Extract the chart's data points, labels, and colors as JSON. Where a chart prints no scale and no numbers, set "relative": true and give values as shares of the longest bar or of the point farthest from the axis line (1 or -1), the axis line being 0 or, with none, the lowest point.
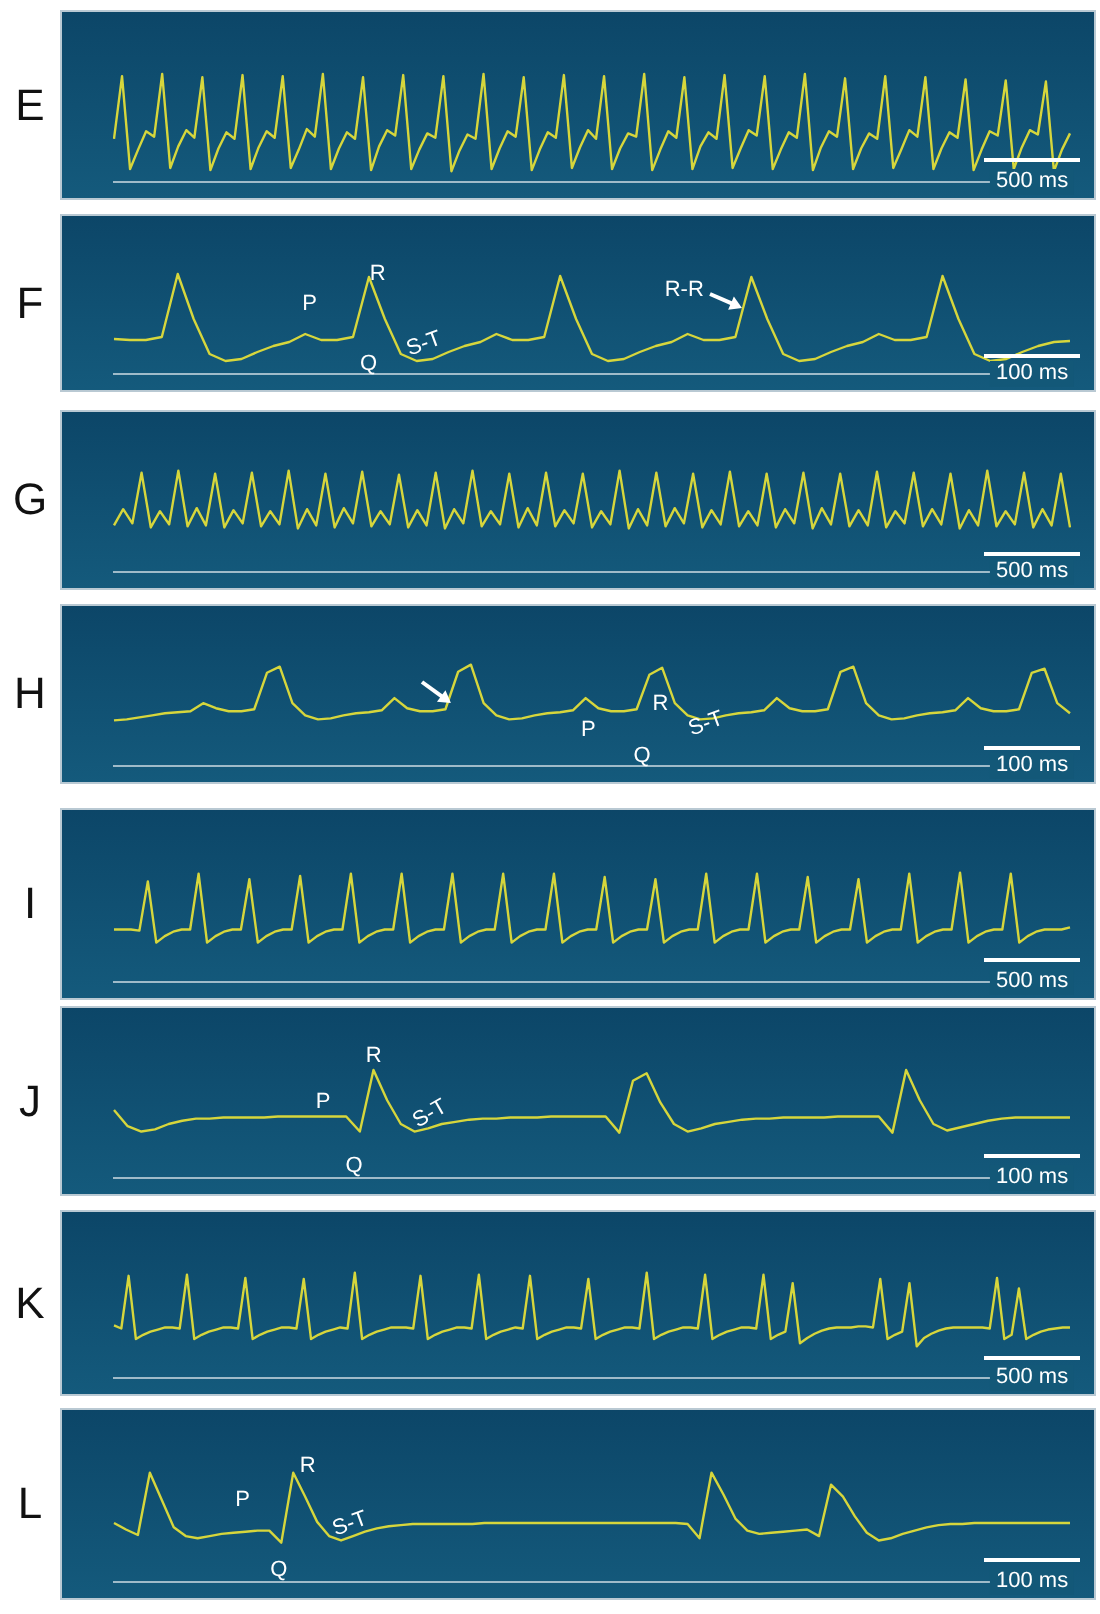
{
  "chart_data": [
    {
      "type": "line",
      "title": "E",
      "relative": true,
      "grid": false,
      "legend": false,
      "tick_labels": false,
      "marker": "none",
      "color": "#d6d63c",
      "annotations": [
        "500 ms"
      ],
      "categories": [
        null,
        null,
        null,
        null,
        null,
        null,
        null,
        null,
        null,
        null,
        null,
        null,
        null,
        null,
        null,
        null,
        null,
        null,
        null,
        null,
        null,
        null,
        null,
        null,
        null,
        null,
        null,
        null,
        null,
        null,
        null,
        null,
        null,
        null,
        null,
        null,
        null,
        null,
        null,
        null,
        null,
        null,
        null,
        null,
        null,
        null,
        null,
        null,
        null,
        null,
        null,
        null,
        null,
        null,
        null,
        null,
        null,
        null,
        null,
        null,
        null,
        null,
        null,
        null,
        null,
        null,
        null,
        null,
        null,
        null,
        null,
        null,
        null,
        null,
        null,
        null,
        null,
        null,
        null,
        null,
        null,
        null,
        null,
        null,
        null,
        null,
        null,
        null,
        null,
        null,
        null,
        null,
        null,
        null,
        null,
        null,
        null,
        null,
        null,
        null,
        null,
        null,
        null,
        null,
        null,
        null,
        null,
        null,
        null,
        null,
        null,
        null,
        null,
        null,
        null,
        null,
        null,
        null,
        null,
        null
      ],
      "values": [
        0.4,
        0.98,
        0.12,
        0.3,
        0.47,
        0.42,
        1.0,
        0.13,
        0.33,
        0.48,
        0.41,
        0.97,
        0.11,
        0.31,
        0.46,
        0.4,
        0.99,
        0.12,
        0.32,
        0.47,
        0.41,
        0.98,
        0.13,
        0.3,
        0.49,
        0.42,
        1.0,
        0.12,
        0.31,
        0.46,
        0.4,
        0.97,
        0.11,
        0.33,
        0.48,
        0.43,
        0.99,
        0.12,
        0.3,
        0.45,
        0.41,
        0.98,
        0.1,
        0.29,
        0.44,
        0.4,
        1.0,
        0.12,
        0.31,
        0.47,
        0.42,
        0.97,
        0.11,
        0.3,
        0.46,
        0.41,
        0.99,
        0.13,
        0.32,
        0.48,
        0.4,
        0.98,
        0.12,
        0.31,
        0.45,
        0.42,
        1.0,
        0.11,
        0.3,
        0.47,
        0.41,
        0.97,
        0.12,
        0.33,
        0.46,
        0.4,
        0.99,
        0.13,
        0.31,
        0.48,
        0.43,
        0.98,
        0.12,
        0.3,
        0.46,
        0.41,
        1.0,
        0.11,
        0.32,
        0.47,
        0.42,
        0.96,
        0.12,
        0.31,
        0.45,
        0.4,
        0.98,
        0.13,
        0.3,
        0.48,
        0.42,
        0.97,
        0.12,
        0.31,
        0.46,
        0.41,
        0.95,
        0.11,
        0.3,
        0.47,
        0.43,
        0.94,
        0.12,
        0.32,
        0.48,
        0.44,
        0.93,
        0.1,
        0.3,
        0.45
      ]
    },
    {
      "type": "line",
      "title": "F",
      "relative": true,
      "grid": false,
      "legend": false,
      "tick_labels": false,
      "marker": "none",
      "color": "#d6d63c",
      "annotations": [
        "P",
        "R",
        "Q",
        "S-T",
        "R-R",
        "100 ms"
      ],
      "categories": [
        null,
        null,
        null,
        null,
        null,
        null,
        null,
        null,
        null,
        null,
        null,
        null,
        null,
        null,
        null,
        null,
        null,
        null,
        null,
        null,
        null,
        null,
        null,
        null,
        null,
        null,
        null,
        null,
        null,
        null,
        null,
        null,
        null,
        null,
        null,
        null,
        null,
        null,
        null,
        null,
        null,
        null,
        null,
        null,
        null,
        null,
        null,
        null,
        null,
        null,
        null,
        null,
        null,
        null,
        null,
        null,
        null,
        null,
        null,
        null,
        null
      ],
      "values": [
        0.35,
        0.34,
        0.34,
        0.37,
        1.0,
        0.55,
        0.2,
        0.13,
        0.15,
        0.22,
        0.28,
        0.32,
        0.4,
        0.34,
        0.34,
        0.37,
        0.97,
        0.55,
        0.2,
        0.13,
        0.15,
        0.22,
        0.28,
        0.32,
        0.4,
        0.34,
        0.34,
        0.37,
        0.98,
        0.55,
        0.2,
        0.13,
        0.15,
        0.22,
        0.28,
        0.32,
        0.4,
        0.34,
        0.34,
        0.37,
        0.97,
        0.55,
        0.2,
        0.13,
        0.15,
        0.22,
        0.28,
        0.32,
        0.4,
        0.34,
        0.34,
        0.37,
        0.98,
        0.55,
        0.2,
        0.13,
        0.15,
        0.22,
        0.28,
        0.32,
        0.33
      ]
    },
    {
      "type": "line",
      "title": "G",
      "relative": true,
      "grid": false,
      "legend": false,
      "tick_labels": false,
      "marker": "none",
      "color": "#d6d63c",
      "annotations": [
        "500 ms"
      ],
      "categories": [
        null,
        null,
        null,
        null,
        null,
        null,
        null,
        null,
        null,
        null,
        null,
        null,
        null,
        null,
        null,
        null,
        null,
        null,
        null,
        null,
        null,
        null,
        null,
        null,
        null,
        null,
        null,
        null,
        null,
        null,
        null,
        null,
        null,
        null,
        null,
        null,
        null,
        null,
        null,
        null,
        null,
        null,
        null,
        null,
        null,
        null,
        null,
        null,
        null,
        null,
        null,
        null,
        null,
        null,
        null,
        null,
        null,
        null,
        null,
        null,
        null,
        null,
        null,
        null,
        null,
        null,
        null,
        null,
        null,
        null,
        null,
        null,
        null,
        null,
        null,
        null,
        null,
        null,
        null,
        null,
        null,
        null,
        null,
        null,
        null,
        null,
        null,
        null,
        null,
        null,
        null,
        null,
        null,
        null,
        null,
        null,
        null,
        null,
        null,
        null,
        null,
        null,
        null,
        null,
        null
      ],
      "values": [
        0.46,
        0.62,
        0.48,
        0.98,
        0.44,
        0.6,
        0.47,
        1.0,
        0.45,
        0.63,
        0.46,
        0.97,
        0.44,
        0.61,
        0.48,
        0.98,
        0.45,
        0.6,
        0.47,
        1.0,
        0.43,
        0.62,
        0.46,
        0.97,
        0.44,
        0.63,
        0.48,
        0.99,
        0.45,
        0.6,
        0.47,
        0.96,
        0.44,
        0.61,
        0.46,
        0.98,
        0.43,
        0.62,
        0.48,
        1.0,
        0.45,
        0.6,
        0.47,
        0.97,
        0.44,
        0.63,
        0.46,
        0.98,
        0.45,
        0.61,
        0.48,
        0.97,
        0.44,
        0.6,
        0.47,
        1.0,
        0.43,
        0.62,
        0.46,
        0.98,
        0.45,
        0.63,
        0.48,
        0.97,
        0.44,
        0.61,
        0.47,
        0.99,
        0.45,
        0.6,
        0.46,
        0.97,
        0.44,
        0.62,
        0.48,
        0.98,
        0.43,
        0.63,
        0.47,
        0.97,
        0.45,
        0.61,
        0.46,
        0.99,
        0.44,
        0.6,
        0.48,
        0.98,
        0.45,
        0.62,
        0.47,
        0.97,
        0.43,
        0.61,
        0.46,
        1.0,
        0.45,
        0.6,
        0.47,
        0.98,
        0.44,
        0.62,
        0.46,
        0.97,
        0.44
      ]
    },
    {
      "type": "line",
      "title": "H",
      "relative": true,
      "grid": false,
      "legend": false,
      "tick_labels": false,
      "marker": "none",
      "color": "#d6d63c",
      "annotations": [
        "P",
        "R",
        "Q",
        "S-T",
        "100 ms"
      ],
      "categories": [
        null,
        null,
        null,
        null,
        null,
        null,
        null,
        null,
        null,
        null,
        null,
        null,
        null,
        null,
        null,
        null,
        null,
        null,
        null,
        null,
        null,
        null,
        null,
        null,
        null,
        null,
        null,
        null,
        null,
        null,
        null,
        null,
        null,
        null,
        null,
        null,
        null,
        null,
        null,
        null,
        null,
        null,
        null,
        null,
        null,
        null,
        null,
        null,
        null,
        null,
        null,
        null,
        null,
        null,
        null,
        null,
        null,
        null,
        null,
        null,
        null,
        null,
        null,
        null,
        null,
        null,
        null,
        null,
        null,
        null,
        null,
        null,
        null,
        null,
        null,
        null
      ],
      "values": [
        0.45,
        0.46,
        0.48,
        0.5,
        0.52,
        0.53,
        0.54,
        0.62,
        0.57,
        0.54,
        0.54,
        0.56,
        0.92,
        0.98,
        0.62,
        0.5,
        0.46,
        0.47,
        0.5,
        0.52,
        0.53,
        0.55,
        0.67,
        0.57,
        0.54,
        0.54,
        0.56,
        0.93,
        1.0,
        0.62,
        0.5,
        0.46,
        0.47,
        0.5,
        0.52,
        0.53,
        0.55,
        0.67,
        0.57,
        0.54,
        0.54,
        0.56,
        0.9,
        0.97,
        0.62,
        0.5,
        0.46,
        0.47,
        0.5,
        0.52,
        0.53,
        0.55,
        0.67,
        0.57,
        0.54,
        0.54,
        0.56,
        0.93,
        0.98,
        0.62,
        0.5,
        0.46,
        0.47,
        0.5,
        0.52,
        0.53,
        0.55,
        0.67,
        0.57,
        0.54,
        0.54,
        0.56,
        0.92,
        0.96,
        0.62,
        0.52
      ]
    },
    {
      "type": "line",
      "title": "I",
      "relative": true,
      "grid": false,
      "legend": false,
      "tick_labels": false,
      "marker": "none",
      "color": "#d6d63c",
      "annotations": [
        "500 ms"
      ],
      "categories": [
        null,
        null,
        null,
        null,
        null,
        null,
        null,
        null,
        null,
        null,
        null,
        null,
        null,
        null,
        null,
        null,
        null,
        null,
        null,
        null,
        null,
        null,
        null,
        null,
        null,
        null,
        null,
        null,
        null,
        null,
        null,
        null,
        null,
        null,
        null,
        null,
        null,
        null,
        null,
        null,
        null,
        null,
        null,
        null,
        null,
        null,
        null,
        null,
        null,
        null,
        null,
        null,
        null,
        null,
        null,
        null,
        null,
        null,
        null,
        null,
        null,
        null,
        null,
        null,
        null,
        null,
        null,
        null,
        null,
        null,
        null,
        null,
        null,
        null,
        null,
        null,
        null,
        null,
        null,
        null,
        null,
        null,
        null,
        null,
        null,
        null,
        null,
        null,
        null,
        null,
        null,
        null,
        null,
        null,
        null,
        null,
        null,
        null,
        null,
        null,
        null,
        null,
        null,
        null,
        null,
        null,
        null,
        null,
        null,
        null,
        null,
        null,
        null,
        null
      ],
      "values": [
        0.48,
        0.48,
        0.48,
        0.47,
        0.92,
        0.36,
        0.42,
        0.46,
        0.48,
        0.48,
        0.99,
        0.36,
        0.42,
        0.46,
        0.48,
        0.48,
        0.94,
        0.36,
        0.42,
        0.46,
        0.48,
        0.48,
        0.97,
        0.36,
        0.42,
        0.46,
        0.48,
        0.48,
        0.99,
        0.36,
        0.42,
        0.46,
        0.48,
        0.48,
        0.99,
        0.36,
        0.42,
        0.46,
        0.48,
        0.48,
        0.99,
        0.36,
        0.42,
        0.46,
        0.48,
        0.48,
        0.99,
        0.36,
        0.42,
        0.46,
        0.48,
        0.48,
        0.99,
        0.36,
        0.42,
        0.46,
        0.48,
        0.48,
        0.96,
        0.36,
        0.42,
        0.46,
        0.48,
        0.48,
        0.94,
        0.36,
        0.42,
        0.46,
        0.48,
        0.48,
        0.99,
        0.36,
        0.42,
        0.46,
        0.48,
        0.48,
        0.99,
        0.36,
        0.42,
        0.46,
        0.48,
        0.48,
        0.96,
        0.36,
        0.42,
        0.46,
        0.48,
        0.48,
        0.94,
        0.36,
        0.42,
        0.46,
        0.48,
        0.48,
        0.99,
        0.36,
        0.42,
        0.46,
        0.48,
        0.48,
        1.0,
        0.36,
        0.42,
        0.46,
        0.48,
        0.48,
        0.99,
        0.36,
        0.42,
        0.46,
        0.48,
        0.48,
        0.48,
        0.5
      ]
    },
    {
      "type": "line",
      "title": "J",
      "relative": true,
      "grid": false,
      "legend": false,
      "tick_labels": false,
      "marker": "none",
      "color": "#d6d63c",
      "annotations": [
        "P",
        "R",
        "Q",
        "S-T",
        "100 ms"
      ],
      "categories": [
        null,
        null,
        null,
        null,
        null,
        null,
        null,
        null,
        null,
        null,
        null,
        null,
        null,
        null,
        null,
        null,
        null,
        null,
        null,
        null,
        null,
        null,
        null,
        null,
        null,
        null,
        null,
        null,
        null,
        null,
        null,
        null,
        null,
        null,
        null,
        null,
        null,
        null,
        null,
        null,
        null,
        null,
        null,
        null,
        null,
        null,
        null,
        null,
        null,
        null,
        null,
        null,
        null,
        null,
        null,
        null,
        null,
        null,
        null,
        null,
        null,
        null,
        null,
        null,
        null,
        null,
        null,
        null,
        null,
        null,
        null
      ],
      "values": [
        0.63,
        0.48,
        0.43,
        0.45,
        0.5,
        0.53,
        0.55,
        0.55,
        0.56,
        0.56,
        0.56,
        0.56,
        0.57,
        0.57,
        0.57,
        0.57,
        0.57,
        0.57,
        0.43,
        1.0,
        0.72,
        0.5,
        0.43,
        0.46,
        0.5,
        0.52,
        0.54,
        0.55,
        0.55,
        0.56,
        0.56,
        0.56,
        0.57,
        0.57,
        0.57,
        0.57,
        0.57,
        0.42,
        0.9,
        0.97,
        0.7,
        0.5,
        0.43,
        0.46,
        0.5,
        0.52,
        0.54,
        0.55,
        0.55,
        0.56,
        0.56,
        0.56,
        0.56,
        0.57,
        0.57,
        0.57,
        0.57,
        0.42,
        1.0,
        0.72,
        0.5,
        0.44,
        0.47,
        0.5,
        0.53,
        0.55,
        0.56,
        0.56,
        0.56,
        0.56,
        0.56
      ]
    },
    {
      "type": "line",
      "title": "K",
      "relative": true,
      "grid": false,
      "legend": false,
      "tick_labels": false,
      "marker": "none",
      "color": "#d6d63c",
      "annotations": [
        "500 ms"
      ],
      "categories": [
        null,
        null,
        null,
        null,
        null,
        null,
        null,
        null,
        null,
        null,
        null,
        null,
        null,
        null,
        null,
        null,
        null,
        null,
        null,
        null,
        null,
        null,
        null,
        null,
        null,
        null,
        null,
        null,
        null,
        null,
        null,
        null,
        null,
        null,
        null,
        null,
        null,
        null,
        null,
        null,
        null,
        null,
        null,
        null,
        null,
        null,
        null,
        null,
        null,
        null,
        null,
        null,
        null,
        null,
        null,
        null,
        null,
        null,
        null,
        null,
        null,
        null,
        null,
        null,
        null,
        null,
        null,
        null,
        null,
        null,
        null,
        null,
        null,
        null,
        null,
        null,
        null,
        null,
        null,
        null,
        null,
        null,
        null,
        null,
        null,
        null,
        null,
        null,
        null,
        null,
        null,
        null,
        null,
        null,
        null,
        null,
        null,
        null,
        null,
        null,
        null,
        null,
        null,
        null,
        null,
        null,
        null,
        null,
        null,
        null,
        null,
        null,
        null,
        null,
        null,
        null,
        null,
        null,
        null,
        null,
        null,
        null,
        null,
        null,
        null,
        null,
        null,
        null,
        null,
        null,
        null,
        null
      ],
      "values": [
        0.5,
        0.47,
        0.97,
        0.37,
        0.41,
        0.44,
        0.46,
        0.48,
        0.48,
        0.47,
        0.98,
        0.37,
        0.41,
        0.44,
        0.46,
        0.48,
        0.48,
        0.47,
        0.95,
        0.37,
        0.41,
        0.44,
        0.46,
        0.48,
        0.48,
        0.47,
        0.94,
        0.37,
        0.41,
        0.44,
        0.46,
        0.48,
        0.47,
        1.0,
        0.37,
        0.41,
        0.44,
        0.46,
        0.48,
        0.48,
        0.48,
        0.47,
        0.97,
        0.37,
        0.41,
        0.44,
        0.46,
        0.48,
        0.48,
        0.47,
        0.98,
        0.37,
        0.41,
        0.44,
        0.46,
        0.48,
        0.47,
        0.97,
        0.37,
        0.41,
        0.44,
        0.46,
        0.48,
        0.48,
        0.47,
        0.94,
        0.37,
        0.41,
        0.44,
        0.46,
        0.48,
        0.48,
        0.47,
        1.0,
        0.37,
        0.41,
        0.44,
        0.46,
        0.48,
        0.48,
        0.47,
        0.98,
        0.37,
        0.41,
        0.44,
        0.46,
        0.48,
        0.48,
        0.47,
        0.98,
        0.37,
        0.41,
        0.44,
        0.9,
        0.33,
        0.38,
        0.42,
        0.45,
        0.47,
        0.48,
        0.48,
        0.48,
        0.49,
        0.49,
        0.48,
        0.94,
        0.37,
        0.41,
        0.44,
        0.9,
        0.3,
        0.38,
        0.42,
        0.45,
        0.47,
        0.48,
        0.48,
        0.48,
        0.48,
        0.48,
        0.47,
        0.95,
        0.37,
        0.41,
        0.85,
        0.37,
        0.41,
        0.44,
        0.46,
        0.47,
        0.48,
        0.48
      ]
    },
    {
      "type": "line",
      "title": "L",
      "relative": true,
      "grid": false,
      "legend": false,
      "tick_labels": false,
      "marker": "none",
      "color": "#d6d63c",
      "annotations": [
        "P",
        "R",
        "Q",
        "S-T",
        "100 ms"
      ],
      "categories": [
        null,
        null,
        null,
        null,
        null,
        null,
        null,
        null,
        null,
        null,
        null,
        null,
        null,
        null,
        null,
        null,
        null,
        null,
        null,
        null,
        null,
        null,
        null,
        null,
        null,
        null,
        null,
        null,
        null,
        null,
        null,
        null,
        null,
        null,
        null,
        null,
        null,
        null,
        null,
        null,
        null,
        null,
        null,
        null,
        null,
        null,
        null,
        null,
        null,
        null,
        null,
        null,
        null,
        null,
        null,
        null,
        null,
        null,
        null,
        null,
        null,
        null,
        null,
        null,
        null,
        null,
        null,
        null,
        null,
        null,
        null,
        null,
        null,
        null,
        null,
        null,
        null,
        null,
        null,
        null,
        null
      ],
      "values": [
        0.54,
        0.48,
        0.43,
        1.0,
        0.75,
        0.5,
        0.42,
        0.4,
        0.42,
        0.44,
        0.45,
        0.46,
        0.47,
        0.47,
        0.36,
        1.0,
        0.78,
        0.55,
        0.42,
        0.38,
        0.42,
        0.46,
        0.49,
        0.51,
        0.52,
        0.53,
        0.53,
        0.53,
        0.53,
        0.53,
        0.53,
        0.54,
        0.54,
        0.54,
        0.54,
        0.54,
        0.54,
        0.54,
        0.54,
        0.54,
        0.54,
        0.54,
        0.54,
        0.54,
        0.54,
        0.54,
        0.54,
        0.54,
        0.53,
        0.4,
        1.0,
        0.8,
        0.58,
        0.47,
        0.44,
        0.45,
        0.46,
        0.47,
        0.48,
        0.42,
        0.89,
        0.78,
        0.6,
        0.45,
        0.38,
        0.4,
        0.44,
        0.47,
        0.5,
        0.52,
        0.53,
        0.53,
        0.54,
        0.54,
        0.54,
        0.54,
        0.54,
        0.54,
        0.54,
        0.54,
        0.54
      ]
    }
  ]
}
